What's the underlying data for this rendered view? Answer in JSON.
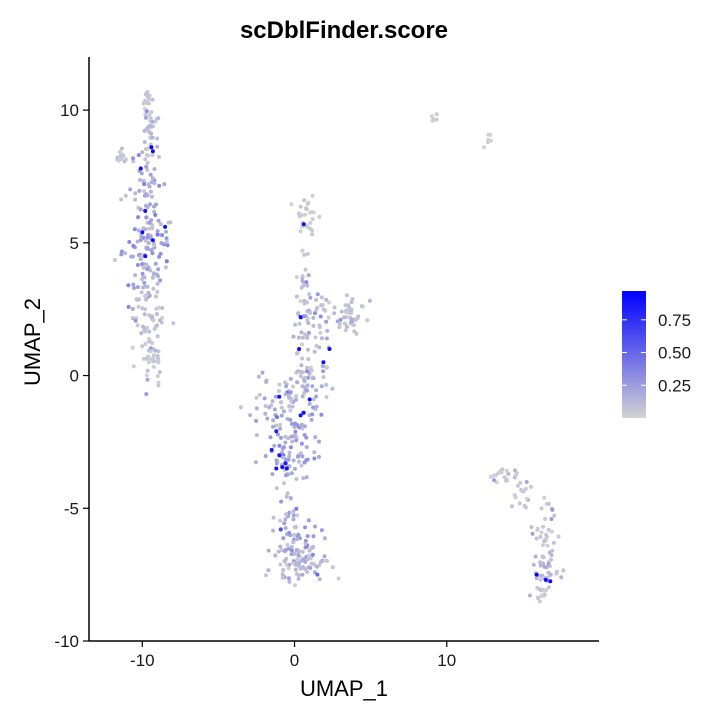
{
  "chart_data": {
    "type": "scatter",
    "title": "scDblFinder.score",
    "xlabel": "UMAP_1",
    "ylabel": "UMAP_2",
    "xlim": [
      -13.5,
      20
    ],
    "ylim": [
      -10,
      12
    ],
    "xticks": [
      -10,
      0,
      10
    ],
    "yticks": [
      -10,
      -5,
      0,
      5,
      10
    ],
    "grid": false,
    "legend": {
      "position": "right",
      "type": "colorbar",
      "low_color": "#d3d3d3",
      "high_color": "#0000ff",
      "min": 0,
      "max": 0.97,
      "ticks": [
        0.25,
        0.5,
        0.75
      ],
      "tick_labels": [
        "0.25",
        "0.50",
        "0.75"
      ]
    },
    "clusters": [
      {
        "cx": -9.6,
        "cy": 10.2,
        "sx": 0.2,
        "sy": 0.5,
        "n": 22,
        "score": 0.05
      },
      {
        "cx": -9.4,
        "cy": 8.8,
        "sx": 0.3,
        "sy": 0.6,
        "n": 26,
        "score": 0.08
      },
      {
        "cx": -11.2,
        "cy": 8.2,
        "sx": 0.5,
        "sy": 0.15,
        "n": 16,
        "score": 0.06
      },
      {
        "cx": -9.7,
        "cy": 7.0,
        "sx": 0.45,
        "sy": 0.6,
        "n": 38,
        "score": 0.12
      },
      {
        "cx": -9.6,
        "cy": 5.2,
        "sx": 0.7,
        "sy": 0.7,
        "n": 70,
        "score": 0.18
      },
      {
        "cx": -9.8,
        "cy": 3.6,
        "sx": 0.6,
        "sy": 0.6,
        "n": 45,
        "score": 0.14
      },
      {
        "cx": -9.6,
        "cy": 2.2,
        "sx": 0.5,
        "sy": 0.6,
        "n": 40,
        "score": 0.08
      },
      {
        "cx": -9.5,
        "cy": 0.8,
        "sx": 0.4,
        "sy": 0.5,
        "n": 26,
        "score": 0.05
      },
      {
        "cx": -9.2,
        "cy": 0.2,
        "sx": 0.2,
        "sy": 0.3,
        "n": 10,
        "score": 0.03
      },
      {
        "cx": 0.8,
        "cy": 6.1,
        "sx": 0.35,
        "sy": 0.35,
        "n": 30,
        "score": 0.03
      },
      {
        "cx": 0.7,
        "cy": 3.8,
        "sx": 0.3,
        "sy": 0.6,
        "n": 16,
        "score": 0.05
      },
      {
        "cx": 0.8,
        "cy": 2.4,
        "sx": 0.5,
        "sy": 0.5,
        "n": 28,
        "score": 0.08
      },
      {
        "cx": 1.8,
        "cy": 2.6,
        "sx": 0.4,
        "sy": 0.25,
        "n": 12,
        "score": 0.06
      },
      {
        "cx": 3.5,
        "cy": 2.3,
        "sx": 0.6,
        "sy": 0.35,
        "n": 45,
        "score": 0.06
      },
      {
        "cx": 1.0,
        "cy": 1.2,
        "sx": 0.6,
        "sy": 0.45,
        "n": 26,
        "score": 0.08
      },
      {
        "cx": 1.2,
        "cy": -0.3,
        "sx": 0.7,
        "sy": 0.45,
        "n": 35,
        "score": 0.1
      },
      {
        "cx": -0.5,
        "cy": -1.0,
        "sx": 1.1,
        "sy": 0.5,
        "n": 55,
        "score": 0.12
      },
      {
        "cx": -0.3,
        "cy": -2.5,
        "sx": 1.0,
        "sy": 0.6,
        "n": 65,
        "score": 0.15
      },
      {
        "cx": -0.5,
        "cy": -3.5,
        "sx": 0.6,
        "sy": 0.35,
        "n": 30,
        "score": 0.15
      },
      {
        "cx": -0.3,
        "cy": -5.0,
        "sx": 0.35,
        "sy": 0.6,
        "n": 16,
        "score": 0.14
      },
      {
        "cx": 0.0,
        "cy": -6.3,
        "sx": 0.8,
        "sy": 0.6,
        "n": 70,
        "score": 0.14
      },
      {
        "cx": 0.5,
        "cy": -7.2,
        "sx": 1.0,
        "sy": 0.35,
        "n": 45,
        "score": 0.08
      },
      {
        "cx": 9.2,
        "cy": 9.7,
        "sx": 0.12,
        "sy": 0.1,
        "n": 5,
        "score": 0.02
      },
      {
        "cx": 12.8,
        "cy": 8.9,
        "sx": 0.25,
        "sy": 0.15,
        "n": 6,
        "score": 0.02
      },
      {
        "cx": 13.8,
        "cy": -3.8,
        "sx": 0.7,
        "sy": 0.15,
        "n": 20,
        "score": 0.03
      },
      {
        "cx": 15.0,
        "cy": -4.5,
        "sx": 0.6,
        "sy": 0.3,
        "n": 18,
        "score": 0.04
      },
      {
        "cx": 16.5,
        "cy": -6.0,
        "sx": 0.35,
        "sy": 0.6,
        "n": 30,
        "score": 0.05
      },
      {
        "cx": 16.5,
        "cy": -7.5,
        "sx": 0.45,
        "sy": 0.5,
        "n": 40,
        "score": 0.08
      },
      {
        "cx": 16.3,
        "cy": -8.2,
        "sx": 0.25,
        "sy": 0.2,
        "n": 10,
        "score": 0.03
      }
    ],
    "high_points": [
      {
        "x": -9.4,
        "y": 8.6,
        "v": 0.95
      },
      {
        "x": -9.3,
        "y": 8.45,
        "v": 0.92
      },
      {
        "x": -10.1,
        "y": 7.8,
        "v": 0.9
      },
      {
        "x": -9.8,
        "y": 6.2,
        "v": 0.88
      },
      {
        "x": -8.5,
        "y": 5.6,
        "v": 0.9
      },
      {
        "x": -10.0,
        "y": 5.4,
        "v": 0.9
      },
      {
        "x": -9.3,
        "y": 5.1,
        "v": 0.92
      },
      {
        "x": -9.8,
        "y": 4.5,
        "v": 0.9
      },
      {
        "x": 0.6,
        "y": 5.7,
        "v": 0.9
      },
      {
        "x": 0.4,
        "y": 2.2,
        "v": 0.9
      },
      {
        "x": 2.3,
        "y": 1.0,
        "v": 0.9
      },
      {
        "x": 0.3,
        "y": 1.0,
        "v": 0.9
      },
      {
        "x": 1.9,
        "y": 0.5,
        "v": 0.9
      },
      {
        "x": -1.0,
        "y": -0.8,
        "v": 0.88
      },
      {
        "x": 1.0,
        "y": -0.9,
        "v": 0.9
      },
      {
        "x": 0.6,
        "y": -1.4,
        "v": 0.9
      },
      {
        "x": 0.4,
        "y": -1.5,
        "v": 0.88
      },
      {
        "x": -1.2,
        "y": -2.1,
        "v": 0.85
      },
      {
        "x": -1.5,
        "y": -2.8,
        "v": 0.85
      },
      {
        "x": -1.0,
        "y": -3.0,
        "v": 0.88
      },
      {
        "x": -0.6,
        "y": -3.3,
        "v": 0.85
      },
      {
        "x": -1.2,
        "y": -3.5,
        "v": 0.9
      },
      {
        "x": -0.8,
        "y": -3.45,
        "v": 0.9
      },
      {
        "x": -0.5,
        "y": -3.5,
        "v": 0.92
      },
      {
        "x": -0.9,
        "y": -5.8,
        "v": 0.6
      },
      {
        "x": 1.5,
        "y": -7.5,
        "v": 0.5
      },
      {
        "x": 15.9,
        "y": -7.5,
        "v": 0.95
      },
      {
        "x": 16.5,
        "y": -7.7,
        "v": 0.92
      },
      {
        "x": 16.8,
        "y": -7.75,
        "v": 0.9
      }
    ]
  }
}
